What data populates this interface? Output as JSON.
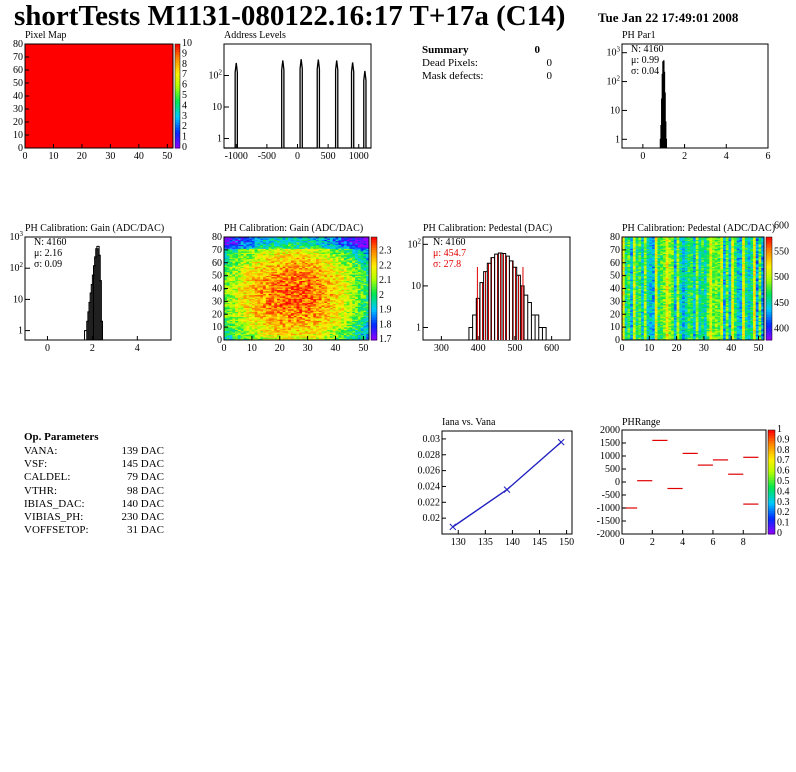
{
  "page": {
    "title": "shortTests M1131-080122.16:17 T+17a (C14)",
    "timestamp": "Tue Jan 22 17:49:01 2008"
  },
  "summary": {
    "title": "Summary",
    "total": "0",
    "rows": [
      {
        "label": "Dead Pixels:",
        "value": "0"
      },
      {
        "label": "Mask defects:",
        "value": "0"
      }
    ]
  },
  "op_parameters": {
    "title": "Op. Parameters",
    "rows": [
      {
        "name": "VANA:",
        "value": "139 DAC"
      },
      {
        "name": "VSF:",
        "value": "145 DAC"
      },
      {
        "name": "CALDEL:",
        "value": "79 DAC"
      },
      {
        "name": "VTHR:",
        "value": "98 DAC"
      },
      {
        "name": "IBIAS_DAC:",
        "value": "140 DAC"
      },
      {
        "name": "VIBIAS_PH:",
        "value": "230 DAC"
      },
      {
        "name": "VOFFSETOP:",
        "value": "31 DAC"
      }
    ]
  },
  "chart_data": [
    {
      "id": "pixel_map",
      "type": "heatmap",
      "title": "Pixel Map",
      "xlim": [
        0,
        52
      ],
      "ylim": [
        0,
        80
      ],
      "x_ticks": [
        "0",
        "10",
        "20",
        "30",
        "40",
        "50"
      ],
      "y_ticks": [
        "0",
        "10",
        "20",
        "30",
        "40",
        "50",
        "60",
        "70",
        "80"
      ],
      "fill_value": 10,
      "zlim": [
        0,
        10
      ],
      "z_ticks": [
        "0",
        "1",
        "2",
        "3",
        "4",
        "5",
        "6",
        "7",
        "8",
        "9",
        "10"
      ]
    },
    {
      "id": "address_levels",
      "type": "histogram",
      "title": "Address Levels",
      "yscale": "log",
      "xlim": [
        -1200,
        1200
      ],
      "ylim": [
        0.5,
        1000
      ],
      "x_ticks": [
        "-1000",
        "-500",
        "0",
        "500",
        "1000"
      ],
      "y_ticks": [
        "1",
        "10",
        "10^2"
      ],
      "peaks": [
        {
          "center": -1000,
          "height": 250
        },
        {
          "center": -240,
          "height": 300
        },
        {
          "center": 60,
          "height": 330
        },
        {
          "center": 340,
          "height": 320
        },
        {
          "center": 640,
          "height": 300
        },
        {
          "center": 900,
          "height": 260
        },
        {
          "center": 1100,
          "height": 140
        }
      ]
    },
    {
      "id": "ph_par1",
      "type": "histogram",
      "title": "PH Par1",
      "yscale": "log",
      "xlim": [
        -1,
        6
      ],
      "ylim": [
        0.5,
        2000
      ],
      "x_ticks": [
        "0",
        "2",
        "4",
        "6"
      ],
      "y_ticks": [
        "1",
        "10",
        "10^2",
        "10^3"
      ],
      "stats": {
        "N": "N: 4160",
        "mean": "μ: 0.99",
        "sigma": "σ: 0.04"
      },
      "bins": {
        "x": [
          0.85,
          0.88,
          0.91,
          0.94,
          0.97,
          1.0,
          1.03,
          1.06,
          1.09,
          1.12
        ],
        "y": [
          1,
          3,
          25,
          180,
          480,
          520,
          210,
          40,
          4,
          1
        ]
      }
    },
    {
      "id": "gain_hist",
      "type": "histogram",
      "title": "PH Calibration: Gain (ADC/DAC)",
      "yscale": "log",
      "xlim": [
        -1,
        5.5
      ],
      "ylim": [
        0.5,
        1000
      ],
      "x_ticks": [
        "0",
        "2",
        "4"
      ],
      "y_ticks": [
        "1",
        "10",
        "10^2",
        "10^3"
      ],
      "stats": {
        "N": "N: 4160",
        "mean": "μ: 2.16",
        "sigma": "σ: 0.09"
      },
      "bins": {
        "x": [
          1.7,
          1.8,
          1.85,
          1.9,
          1.95,
          2.0,
          2.05,
          2.1,
          2.15,
          2.2,
          2.25,
          2.3,
          2.35,
          2.4
        ],
        "y": [
          1,
          2,
          4,
          8,
          16,
          30,
          60,
          120,
          230,
          420,
          500,
          260,
          40,
          2
        ]
      }
    },
    {
      "id": "gain_map",
      "type": "heatmap",
      "title": "PH Calibration: Gain (ADC/DAC)",
      "xlim": [
        0,
        52
      ],
      "ylim": [
        0,
        80
      ],
      "x_ticks": [
        "0",
        "10",
        "20",
        "30",
        "40",
        "50"
      ],
      "y_ticks": [
        "0",
        "10",
        "20",
        "30",
        "40",
        "50",
        "60",
        "70",
        "80"
      ],
      "zlim": [
        1.7,
        2.4
      ],
      "z_ticks": [
        "1.7",
        "1.8",
        "1.9",
        "2",
        "2.1",
        "2.2",
        "2.3"
      ]
    },
    {
      "id": "pedestal_hist",
      "type": "histogram",
      "title": "PH Calibration: Pedestal (DAC)",
      "yscale": "log",
      "xlim": [
        250,
        650
      ],
      "ylim": [
        0.5,
        150
      ],
      "x_ticks": [
        "300",
        "400",
        "500",
        "600"
      ],
      "y_ticks": [
        "1",
        "10",
        "10^2"
      ],
      "stats": {
        "N": "N: 4160",
        "mean": "μ: 454.7",
        "sigma": "σ: 27.8"
      },
      "fit_range": [
        398,
        522
      ],
      "bins": {
        "x": [
          380,
          390,
          400,
          410,
          420,
          430,
          440,
          450,
          460,
          470,
          480,
          490,
          500,
          510,
          520,
          530,
          540,
          550,
          560,
          570,
          580
        ],
        "y": [
          1,
          2,
          5,
          12,
          22,
          35,
          48,
          58,
          62,
          60,
          52,
          40,
          28,
          18,
          10,
          6,
          4,
          2,
          2,
          1,
          1
        ]
      }
    },
    {
      "id": "pedestal_map",
      "type": "heatmap",
      "title": "PH Calibration: Pedestal (ADC/DAC)",
      "xlim": [
        0,
        52
      ],
      "ylim": [
        0,
        80
      ],
      "x_ticks": [
        "0",
        "10",
        "20",
        "30",
        "40",
        "50"
      ],
      "y_ticks": [
        "0",
        "10",
        "20",
        "30",
        "40",
        "50",
        "60",
        "70",
        "80"
      ],
      "zlim": [
        380,
        580
      ],
      "z_ticks": [
        "400",
        "450",
        "500",
        "550",
        "600"
      ]
    },
    {
      "id": "iana_vana",
      "type": "line",
      "title": "Iana vs. Vana",
      "xlim": [
        127,
        151
      ],
      "ylim": [
        0.018,
        0.031
      ],
      "x_ticks": [
        "130",
        "135",
        "140",
        "145",
        "150"
      ],
      "y_ticks": [
        "0.02",
        "0.022",
        "0.024",
        "0.026",
        "0.028",
        "0.03"
      ],
      "points": {
        "x": [
          129,
          139,
          149
        ],
        "y": [
          0.0189,
          0.0236,
          0.0296
        ]
      }
    },
    {
      "id": "ph_range",
      "type": "scatter",
      "title": "PHRange",
      "xlim": [
        0,
        9.5
      ],
      "ylim": [
        -2000,
        2000
      ],
      "x_ticks": [
        "0",
        "2",
        "4",
        "6",
        "8"
      ],
      "y_ticks": [
        "-2000",
        "-1500",
        "-1000",
        "-500",
        "0",
        "500",
        "1000",
        "1500",
        "2000"
      ],
      "zlim": [
        0,
        1
      ],
      "z_ticks": [
        "0",
        "0.1",
        "0.2",
        "0.3",
        "0.4",
        "0.5",
        "0.6",
        "0.7",
        "0.8",
        "0.9",
        "1"
      ],
      "segments": [
        {
          "x": 0,
          "y": -1000
        },
        {
          "x": 1,
          "y": 50
        },
        {
          "x": 2,
          "y": 1600
        },
        {
          "x": 3,
          "y": -250
        },
        {
          "x": 4,
          "y": 1100
        },
        {
          "x": 5,
          "y": 650
        },
        {
          "x": 6,
          "y": 850
        },
        {
          "x": 7,
          "y": 300
        },
        {
          "x": 8,
          "y": 950
        },
        {
          "x": 8,
          "y": -850
        }
      ]
    }
  ]
}
